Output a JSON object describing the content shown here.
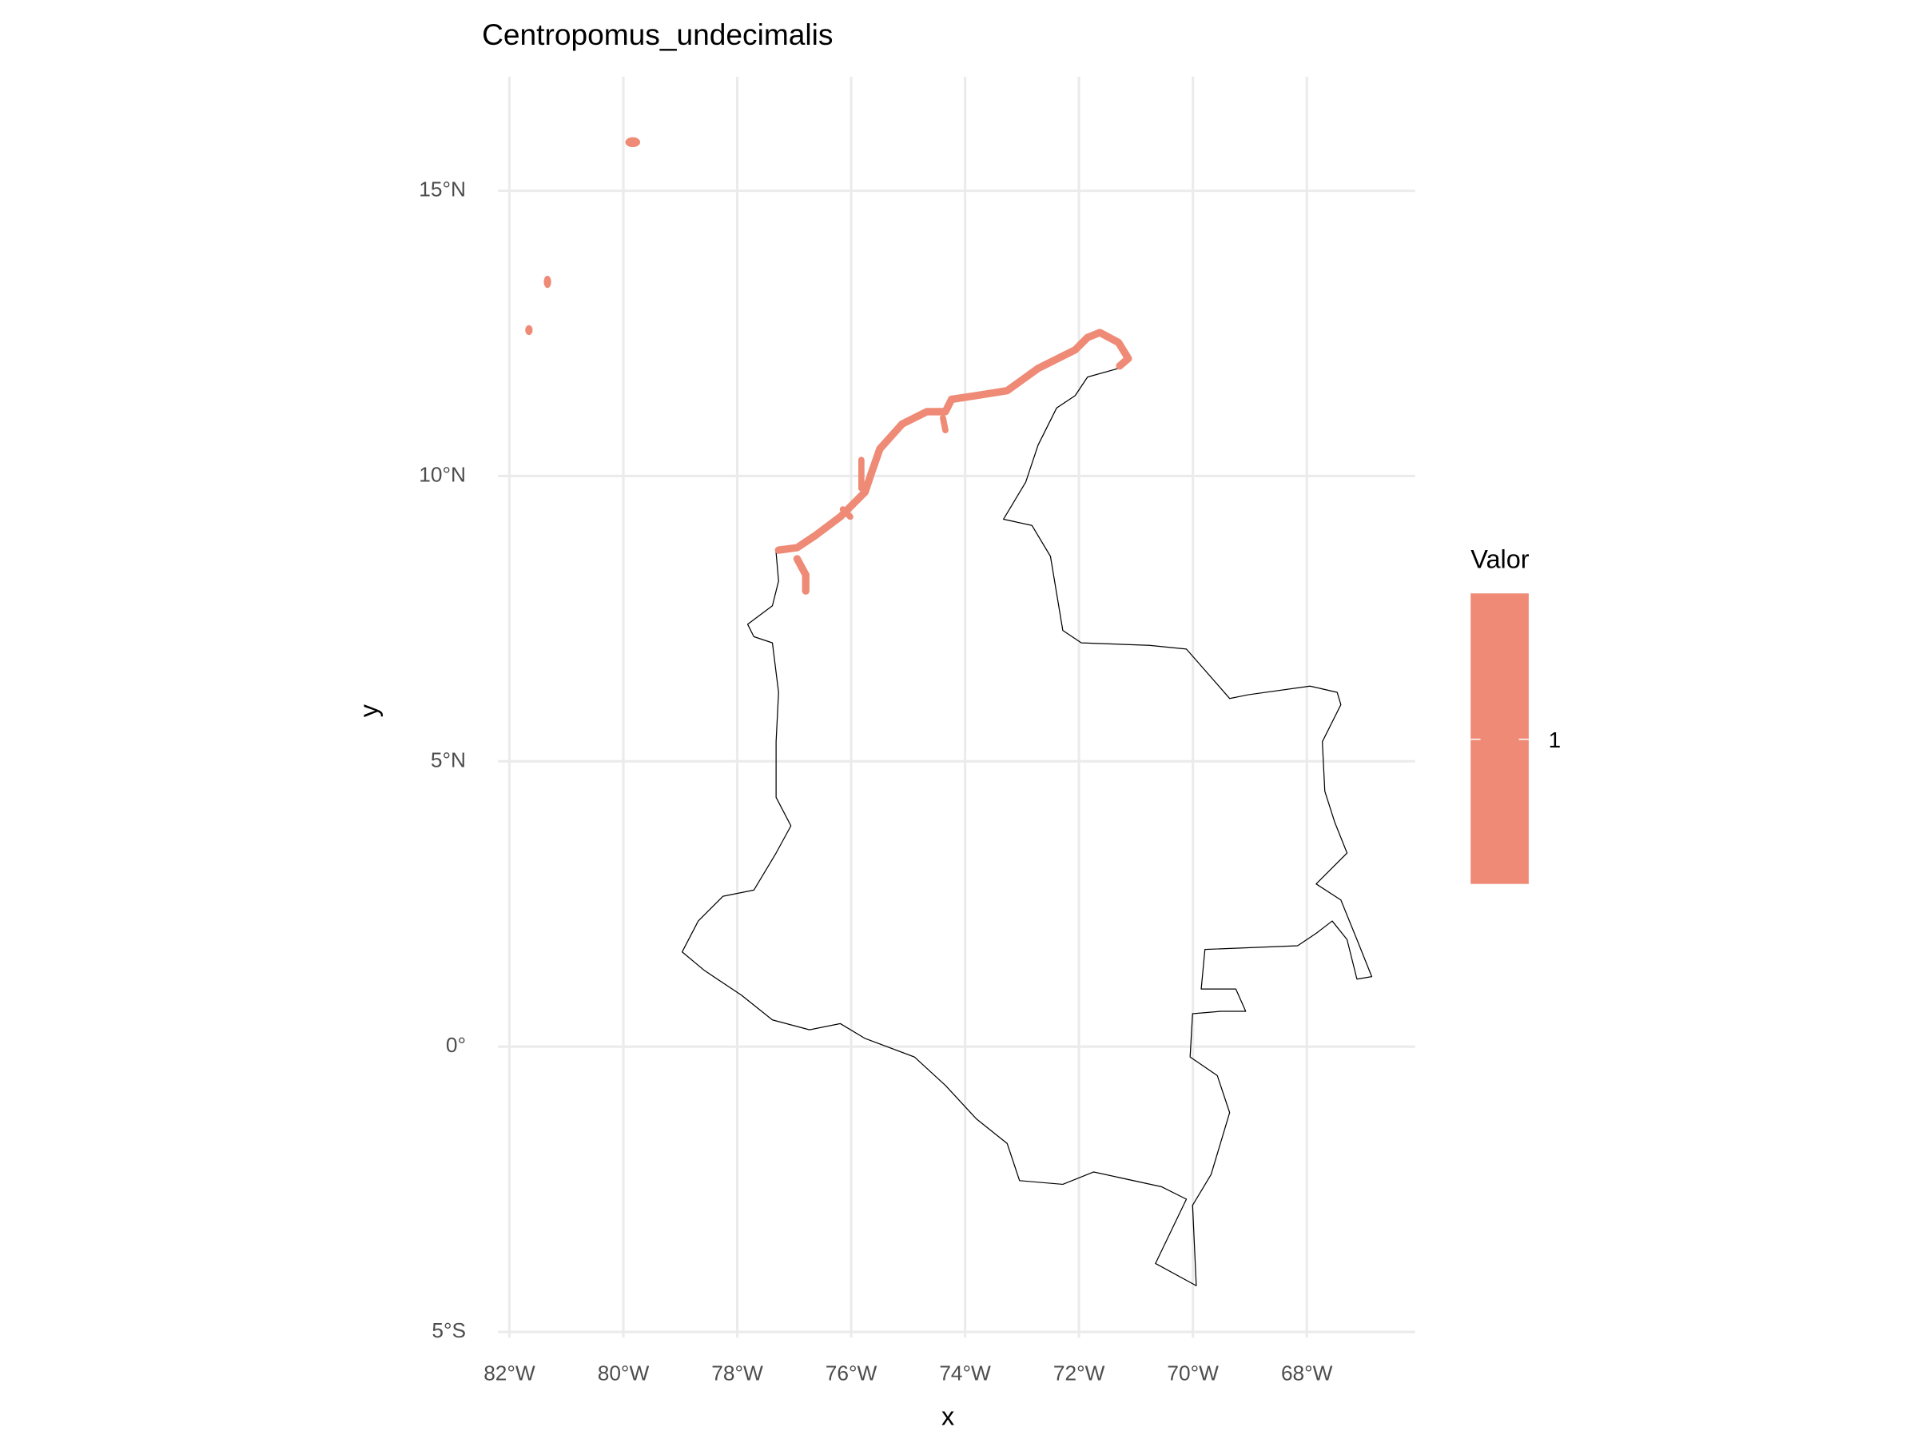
{
  "chart_data": {
    "type": "map",
    "title": "Centropomus_undecimalis",
    "x_label": "x",
    "y_label": "y",
    "xlim": [
      -82.2,
      -66.1
    ],
    "ylim": [
      -5.1,
      17
    ],
    "xticks": [
      {
        "value": -82,
        "label": "82°W"
      },
      {
        "value": -80,
        "label": "80°W"
      },
      {
        "value": -78,
        "label": "78°W"
      },
      {
        "value": -76,
        "label": "76°W"
      },
      {
        "value": -74,
        "label": "74°W"
      },
      {
        "value": -72,
        "label": "72°W"
      },
      {
        "value": -70,
        "label": "70°W"
      },
      {
        "value": -68,
        "label": "68°W"
      }
    ],
    "yticks": [
      {
        "value": -5,
        "label": "5°S"
      },
      {
        "value": 0,
        "label": "0°"
      },
      {
        "value": 5,
        "label": "5°N"
      },
      {
        "value": 10,
        "label": "10°N"
      },
      {
        "value": 15,
        "label": "15°N"
      }
    ],
    "grid": true,
    "legend": {
      "title": "Valor",
      "position": "right",
      "values": [
        1
      ],
      "color": "#ee8a75"
    }
  }
}
